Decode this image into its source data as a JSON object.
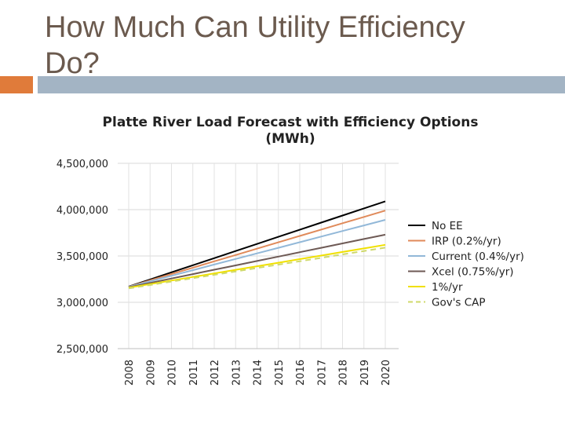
{
  "slide": {
    "title_line1": "How Much Can Utility Efficiency",
    "title_line2": "Do?",
    "accent_color": "#e07b3a",
    "bar_color": "#a3b4c4"
  },
  "chart_data": {
    "type": "line",
    "title_line1": "Platte River Load Forecast with Efficiency Options",
    "title_line2": "(MWh)",
    "xlabel": "",
    "ylabel": "",
    "ylim": [
      2500000,
      4500000
    ],
    "yticks": [
      2500000,
      3000000,
      3500000,
      4000000,
      4500000
    ],
    "ytick_labels": [
      "2,500,000",
      "3,000,000",
      "3,500,000",
      "4,000,000",
      "4,500,000"
    ],
    "x": [
      "2008",
      "2009",
      "2010",
      "2011",
      "2012",
      "2013",
      "2014",
      "2015",
      "2016",
      "2017",
      "2018",
      "2019",
      "2020"
    ],
    "grid": true,
    "legend_position": "right",
    "series": [
      {
        "name": "No EE",
        "color": "#000000",
        "dash": false,
        "start": 3170000,
        "end": 4090000
      },
      {
        "name": "IRP (0.2%/yr)",
        "color": "#e08a5a",
        "dash": false,
        "start": 3168000,
        "end": 3990000
      },
      {
        "name": "Current (0.4%/yr)",
        "color": "#92b8d8",
        "dash": false,
        "start": 3166000,
        "end": 3890000
      },
      {
        "name": "Xcel (0.75%/yr)",
        "color": "#6e5a55",
        "dash": false,
        "start": 3162000,
        "end": 3730000
      },
      {
        "name": "1%/yr",
        "color": "#f0e000",
        "dash": false,
        "start": 3158000,
        "end": 3620000
      },
      {
        "name": "Gov's CAP",
        "color": "#cfd96a",
        "dash": true,
        "start": 3150000,
        "end": 3590000
      }
    ]
  }
}
